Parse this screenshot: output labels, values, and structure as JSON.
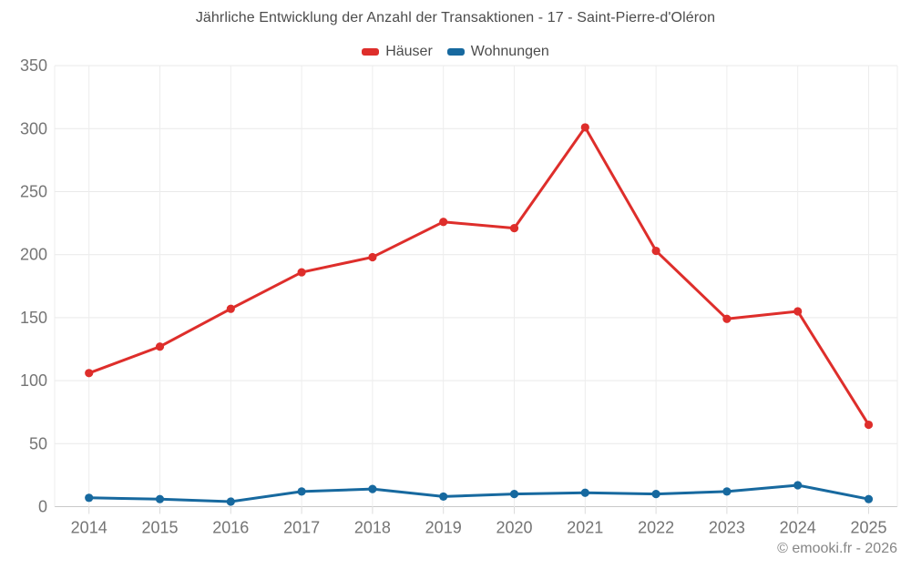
{
  "header": {
    "title": "Jährliche Entwicklung der Anzahl der Transaktionen - 17 - Saint-Pierre-d'Oléron"
  },
  "footer": {
    "copyright": "© emooki.fr - 2026"
  },
  "colors": {
    "hauser_red": "#de2e2b",
    "wohnungen_blue": "#17699f",
    "gridline": "#e9e9e9",
    "axis_line": "#c9c9c9",
    "tick_text": "#757575",
    "title_text": "#4c4c4c",
    "footer_text": "#868686",
    "background": "#ffffff"
  },
  "chart_data": {
    "type": "line",
    "title": "Jährliche Entwicklung der Anzahl der Transaktionen - 17 - Saint-Pierre-d'Oléron",
    "x": [
      2014,
      2015,
      2016,
      2017,
      2018,
      2019,
      2020,
      2021,
      2022,
      2023,
      2024,
      2025
    ],
    "series": [
      {
        "id": "hauser",
        "name": "Häuser",
        "color": "#de2e2b",
        "values": [
          106,
          127,
          157,
          186,
          198,
          226,
          221,
          301,
          203,
          149,
          155,
          65
        ]
      },
      {
        "id": "wohnungen",
        "name": "Wohnungen",
        "color": "#17699f",
        "values": [
          7,
          6,
          4,
          12,
          14,
          8,
          10,
          11,
          10,
          12,
          17,
          6
        ]
      }
    ],
    "xlabel": "",
    "ylabel": "",
    "ylim": [
      0,
      350
    ],
    "ytick_step": 50,
    "grid": true,
    "legend_position": "top"
  }
}
